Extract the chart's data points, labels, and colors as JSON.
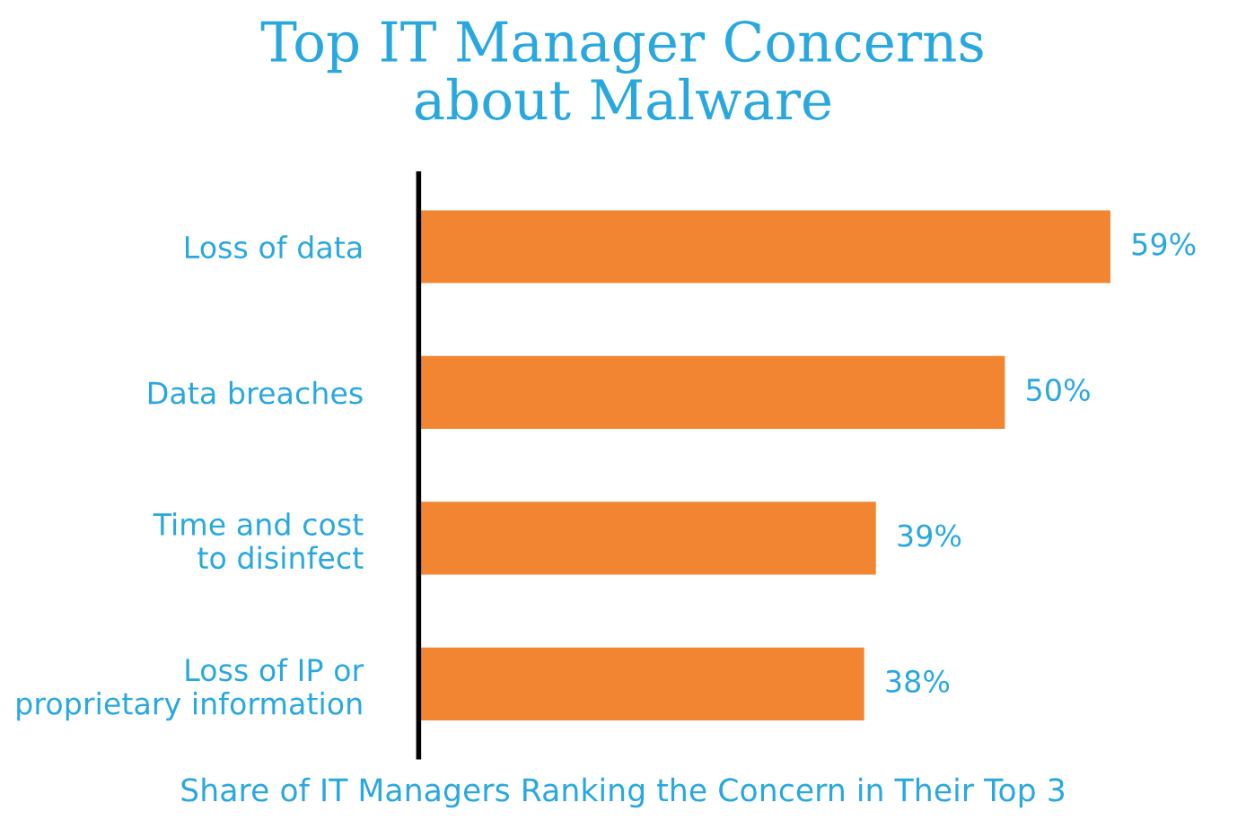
{
  "chart_data": {
    "type": "bar",
    "orientation": "horizontal",
    "title": "Top IT Manager Concerns\nabout Malware",
    "xlabel": "Share of IT Managers Ranking the Concern in Their Top 3",
    "categories": [
      "Loss of data",
      "Data breaches",
      "Time and cost\nto disinfect",
      "Loss of IP or\nproprietary information"
    ],
    "values": [
      59,
      50,
      39,
      38
    ],
    "value_labels": [
      "59%",
      "50%",
      "39%",
      "38%"
    ],
    "color": "#f28532",
    "grid": false,
    "legend": false
  }
}
